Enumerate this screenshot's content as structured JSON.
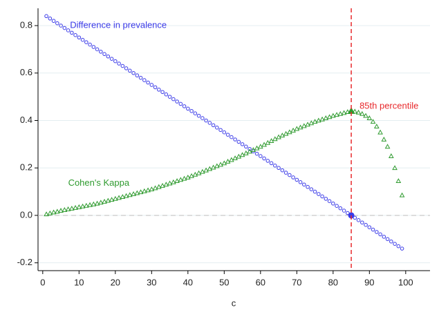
{
  "chart_data": {
    "type": "scatter",
    "x_label": "c",
    "x": [
      1,
      2,
      3,
      4,
      5,
      6,
      7,
      8,
      9,
      10,
      11,
      12,
      13,
      14,
      15,
      16,
      17,
      18,
      19,
      20,
      21,
      22,
      23,
      24,
      25,
      26,
      27,
      28,
      29,
      30,
      31,
      32,
      33,
      34,
      35,
      36,
      37,
      38,
      39,
      40,
      41,
      42,
      43,
      44,
      45,
      46,
      47,
      48,
      49,
      50,
      51,
      52,
      53,
      54,
      55,
      56,
      57,
      58,
      59,
      60,
      61,
      62,
      63,
      64,
      65,
      66,
      67,
      68,
      69,
      70,
      71,
      72,
      73,
      74,
      75,
      76,
      77,
      78,
      79,
      80,
      81,
      82,
      83,
      84,
      85,
      86,
      87,
      88,
      89,
      90,
      91,
      92,
      93,
      94,
      95,
      96,
      97,
      98,
      99
    ],
    "series": [
      {
        "name": "Difference in prevalence",
        "color": "#3a3ae8",
        "marker": "circle",
        "values": [
          0.84,
          0.83,
          0.82,
          0.81,
          0.8,
          0.79,
          0.78,
          0.77,
          0.76,
          0.75,
          0.74,
          0.73,
          0.72,
          0.71,
          0.7,
          0.69,
          0.68,
          0.67,
          0.66,
          0.65,
          0.64,
          0.63,
          0.62,
          0.61,
          0.6,
          0.59,
          0.58,
          0.57,
          0.56,
          0.55,
          0.54,
          0.53,
          0.52,
          0.51,
          0.5,
          0.49,
          0.48,
          0.47,
          0.46,
          0.45,
          0.44,
          0.43,
          0.42,
          0.41,
          0.4,
          0.39,
          0.38,
          0.37,
          0.36,
          0.35,
          0.34,
          0.33,
          0.32,
          0.31,
          0.3,
          0.29,
          0.28,
          0.27,
          0.26,
          0.25,
          0.24,
          0.23,
          0.22,
          0.21,
          0.2,
          0.19,
          0.18,
          0.17,
          0.16,
          0.15,
          0.14,
          0.13,
          0.12,
          0.11,
          0.1,
          0.09,
          0.08,
          0.07,
          0.06,
          0.05,
          0.04,
          0.03,
          0.02,
          0.01,
          0,
          -0.01,
          -0.02,
          -0.03,
          -0.04,
          -0.05,
          -0.06,
          -0.07,
          -0.08,
          -0.09,
          -0.1,
          -0.11,
          -0.12,
          -0.13,
          -0.14
        ]
      },
      {
        "name": "Cohen's Kappa",
        "color": "#2e9a2e",
        "marker": "triangle",
        "values": [
          0.005,
          0.009,
          0.013,
          0.016,
          0.02,
          0.023,
          0.026,
          0.029,
          0.032,
          0.035,
          0.038,
          0.041,
          0.044,
          0.047,
          0.05,
          0.054,
          0.058,
          0.062,
          0.066,
          0.07,
          0.074,
          0.078,
          0.082,
          0.086,
          0.09,
          0.094,
          0.098,
          0.102,
          0.106,
          0.11,
          0.115,
          0.12,
          0.125,
          0.13,
          0.135,
          0.14,
          0.145,
          0.15,
          0.155,
          0.16,
          0.166,
          0.172,
          0.178,
          0.184,
          0.19,
          0.196,
          0.202,
          0.208,
          0.214,
          0.22,
          0.227,
          0.234,
          0.241,
          0.248,
          0.255,
          0.262,
          0.269,
          0.276,
          0.283,
          0.29,
          0.298,
          0.306,
          0.314,
          0.322,
          0.33,
          0.337,
          0.344,
          0.351,
          0.358,
          0.365,
          0.371,
          0.377,
          0.383,
          0.389,
          0.395,
          0.4,
          0.405,
          0.41,
          0.415,
          0.42,
          0.424,
          0.428,
          0.432,
          0.436,
          0.44,
          0.438,
          0.434,
          0.428,
          0.42,
          0.41,
          0.395,
          0.375,
          0.35,
          0.32,
          0.29,
          0.25,
          0.2,
          0.145,
          0.085
        ]
      }
    ],
    "annotations": [
      {
        "text": "Difference in prevalence",
        "x": 7.5,
        "y": 0.8,
        "color": "#3a3ae8"
      },
      {
        "text": "Cohen's Kappa",
        "x": 7,
        "y": 0.135,
        "color": "#2e9a2e"
      }
    ],
    "highlight_index": 84,
    "vline": {
      "value": 85,
      "label": "85th percentile",
      "color": "#e8282b"
    },
    "hline": 0,
    "xlim": [
      -1.3,
      106.7
    ],
    "ylim": [
      -0.233,
      0.873
    ],
    "xticks": [
      0,
      10,
      20,
      30,
      40,
      50,
      60,
      70,
      80,
      90,
      100
    ],
    "yticks": [
      -0.2,
      {
        "value": 0,
        "label": "0.0"
      },
      0.2,
      0.4,
      0.6,
      0.8
    ],
    "grid": true
  }
}
